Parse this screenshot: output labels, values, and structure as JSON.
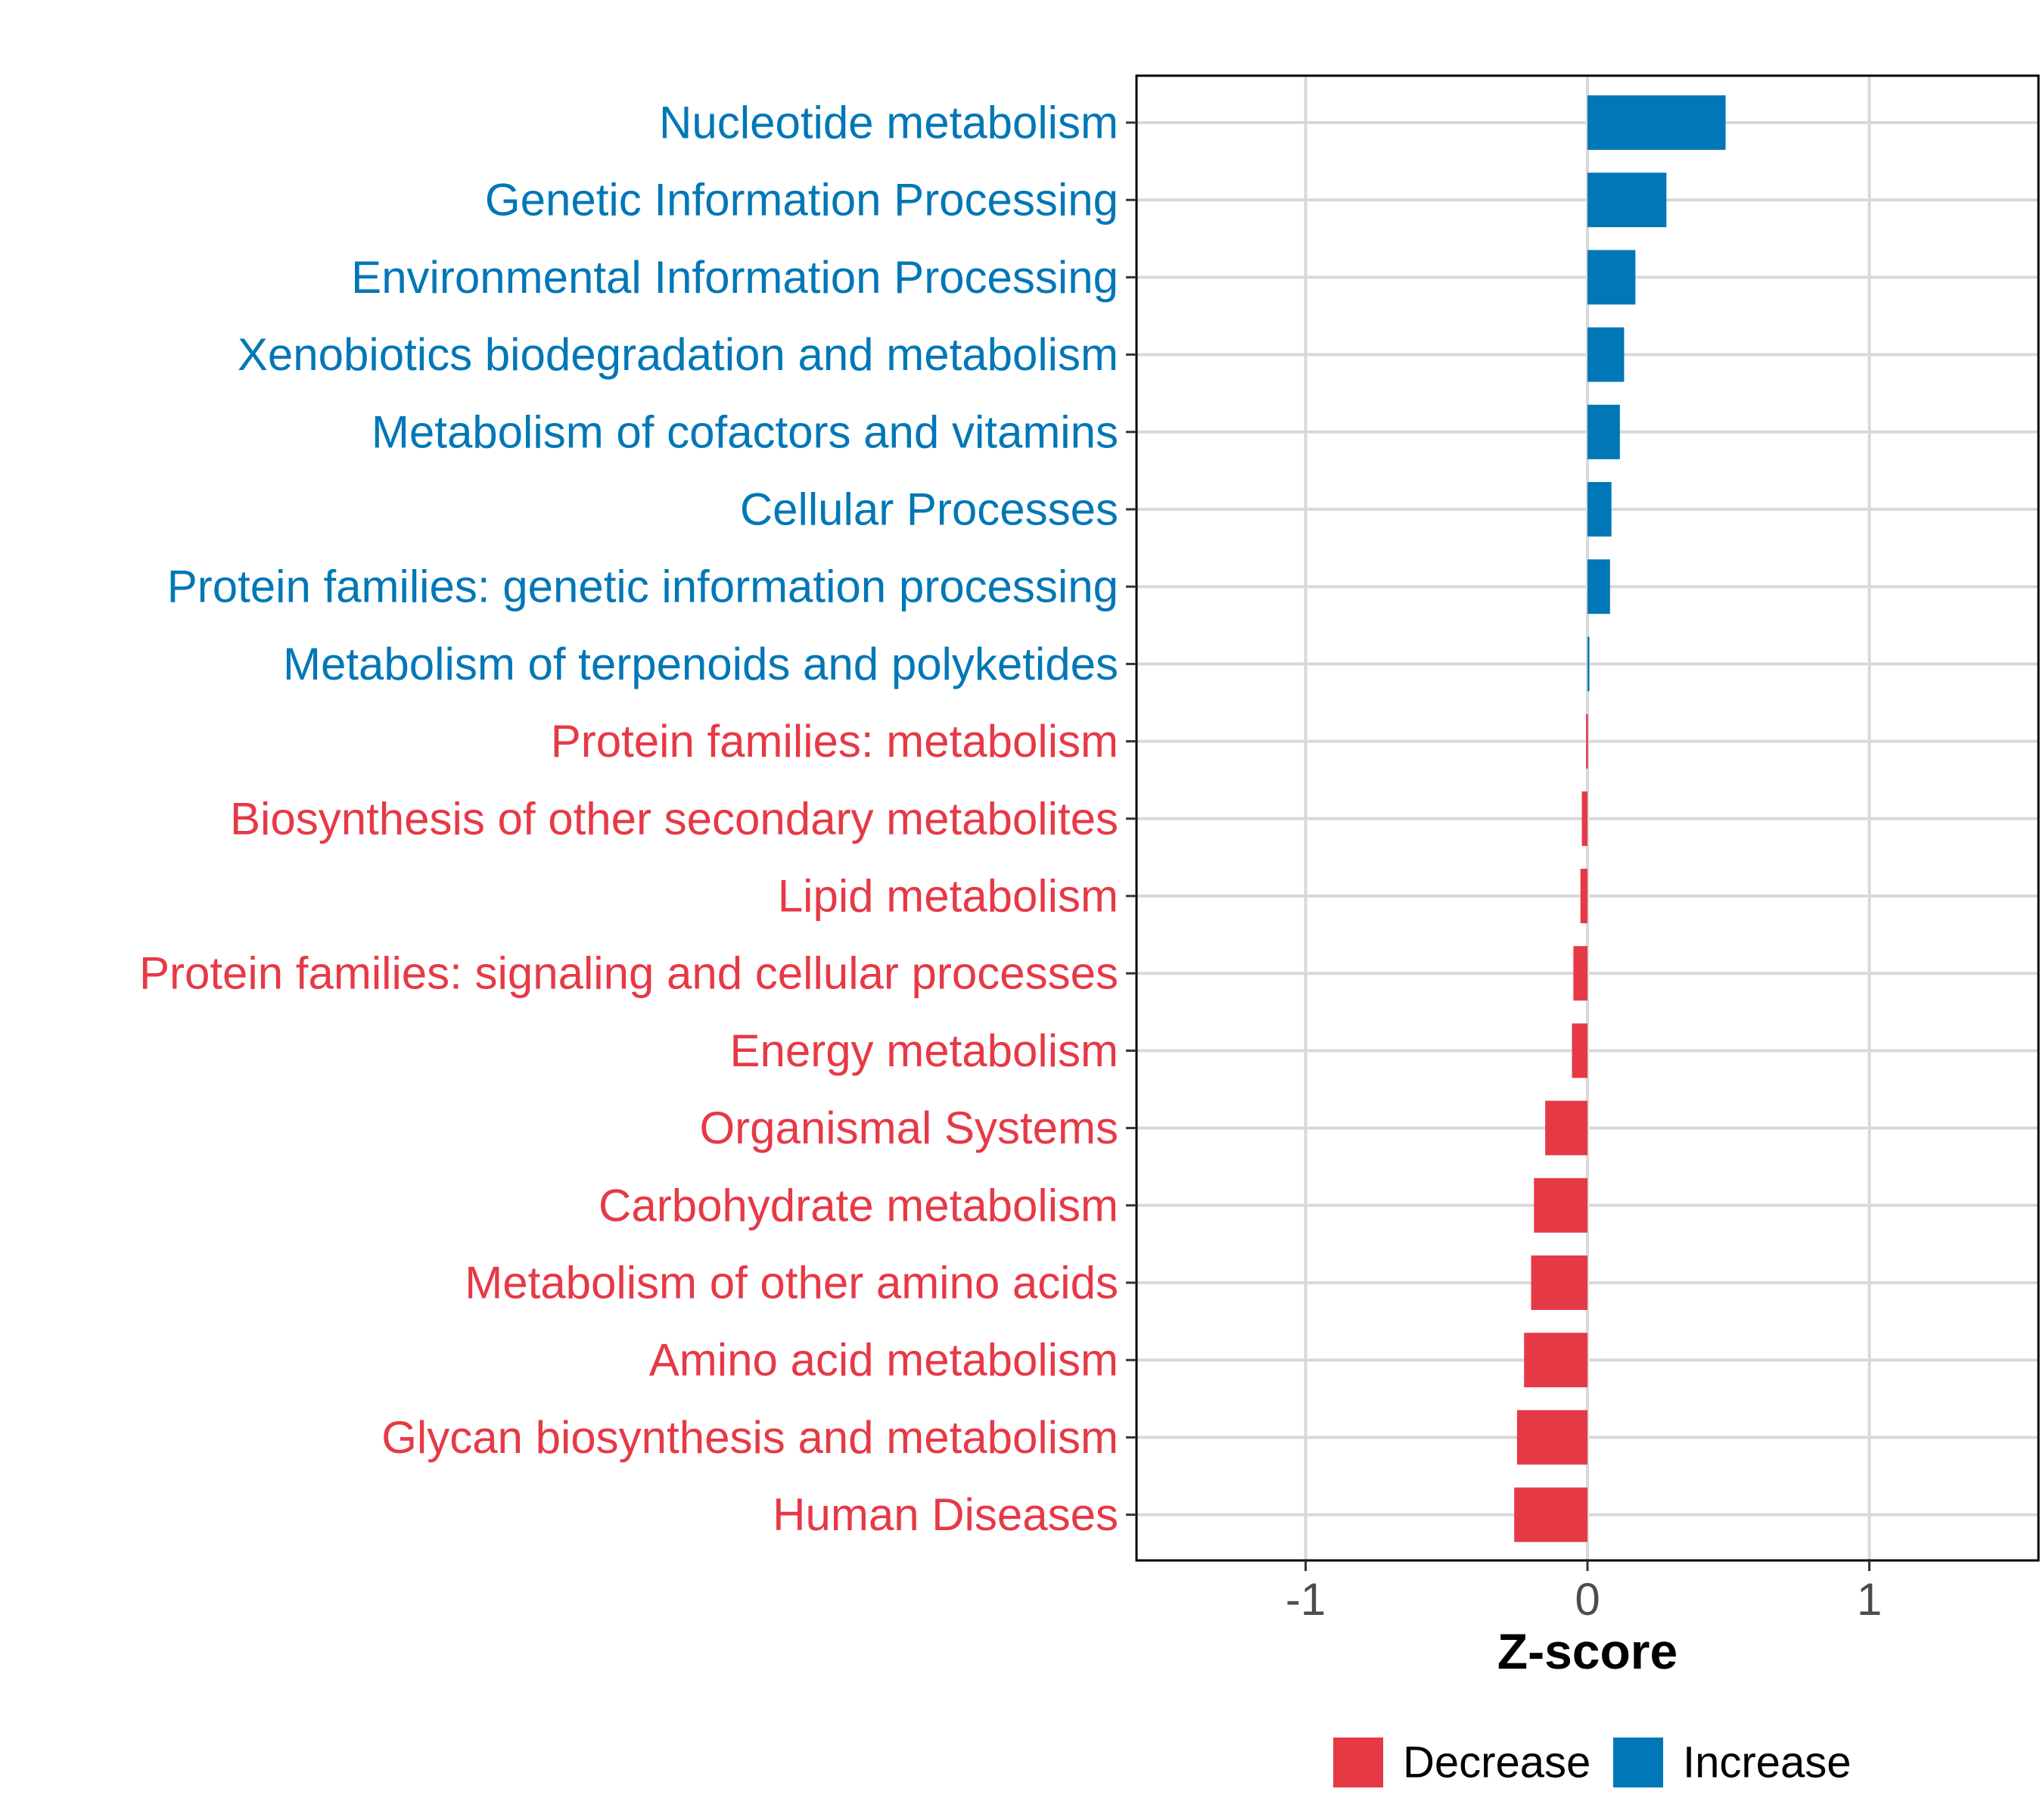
{
  "chart_data": {
    "type": "bar",
    "orientation": "horizontal",
    "title": "",
    "xlabel": "Z-score",
    "ylabel": "",
    "xlim": [
      -1.6,
      1.6
    ],
    "x_ticks": [
      -1,
      0,
      1
    ],
    "x_tick_labels": [
      "-1",
      "0",
      "1"
    ],
    "grid": true,
    "categories": [
      "Nucleotide metabolism",
      "Genetic Information Processing",
      "Environmental Information Processing",
      "Xenobiotics biodegradation and metabolism",
      "Metabolism of cofactors and vitamins",
      "Cellular Processes",
      "Protein families: genetic information processing",
      "Metabolism of terpenoids and polyketides",
      "Protein families: metabolism",
      "Biosynthesis of other secondary metabolites",
      "Lipid metabolism",
      "Protein families: signaling and cellular processes",
      "Energy metabolism",
      "Organismal Systems",
      "Carbohydrate metabolism",
      "Metabolism of other amino acids",
      "Amino acid metabolism",
      "Glycan biosynthesis and metabolism",
      "Human Diseases"
    ],
    "values": [
      0.49,
      0.28,
      0.17,
      0.13,
      0.115,
      0.085,
      0.08,
      0.003,
      -0.005,
      -0.02,
      -0.025,
      -0.05,
      -0.055,
      -0.15,
      -0.19,
      -0.2,
      -0.225,
      -0.25,
      -0.26
    ],
    "groups": [
      "Increase",
      "Increase",
      "Increase",
      "Increase",
      "Increase",
      "Increase",
      "Increase",
      "Increase",
      "Decrease",
      "Decrease",
      "Decrease",
      "Decrease",
      "Decrease",
      "Decrease",
      "Decrease",
      "Decrease",
      "Decrease",
      "Decrease",
      "Decrease"
    ],
    "legend": {
      "position": "bottom",
      "entries": [
        {
          "label": "Decrease",
          "color": "#E63946"
        },
        {
          "label": "Increase",
          "color": "#0077B6"
        }
      ]
    },
    "colors": {
      "Decrease": "#E63946",
      "Increase": "#0077B6"
    }
  }
}
